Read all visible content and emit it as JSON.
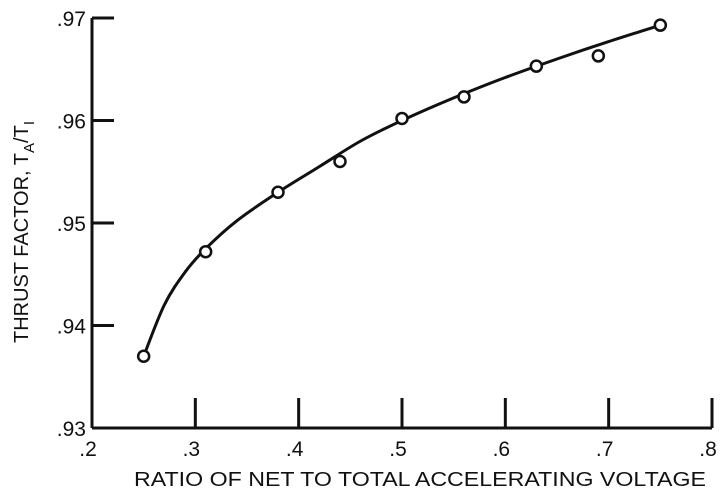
{
  "chart_data": {
    "type": "scatter",
    "title": "",
    "xlabel": "RATIO OF NET TO TOTAL ACCELERATING VOLTAGE",
    "ylabel": "THRUST FACTOR, T",
    "ylabel_sub_1": "A",
    "ylabel_slash": "/T",
    "ylabel_sub_2": "I",
    "xlim": [
      0.2,
      0.8
    ],
    "ylim": [
      0.93,
      0.97
    ],
    "x_ticks": [
      0.2,
      0.3,
      0.4,
      0.5,
      0.6,
      0.7,
      0.8
    ],
    "x_tick_labels": [
      ".2",
      ".3",
      ".4",
      ".5",
      ".6",
      ".7",
      ".8"
    ],
    "y_ticks": [
      0.93,
      0.94,
      0.95,
      0.96,
      0.97
    ],
    "y_tick_labels": [
      ".93",
      ".94",
      ".95",
      ".96",
      ".97"
    ],
    "grid": false,
    "series": [
      {
        "marker": "open-circle",
        "x": [
          0.25,
          0.31,
          0.38,
          0.44,
          0.5,
          0.56,
          0.63,
          0.69,
          0.75
        ],
        "y": [
          0.937,
          0.9472,
          0.953,
          0.956,
          0.9602,
          0.9623,
          0.9653,
          0.9663,
          0.9693
        ]
      },
      {
        "type": "line",
        "x": [
          0.25,
          0.27,
          0.29,
          0.31,
          0.34,
          0.38,
          0.42,
          0.46,
          0.5,
          0.55,
          0.6,
          0.65,
          0.7,
          0.75
        ],
        "y": [
          0.937,
          0.942,
          0.9452,
          0.9475,
          0.9502,
          0.953,
          0.9555,
          0.958,
          0.96,
          0.9622,
          0.9642,
          0.966,
          0.9677,
          0.9693
        ]
      }
    ],
    "colors": {
      "ink": "#111111",
      "background": "#ffffff"
    }
  }
}
